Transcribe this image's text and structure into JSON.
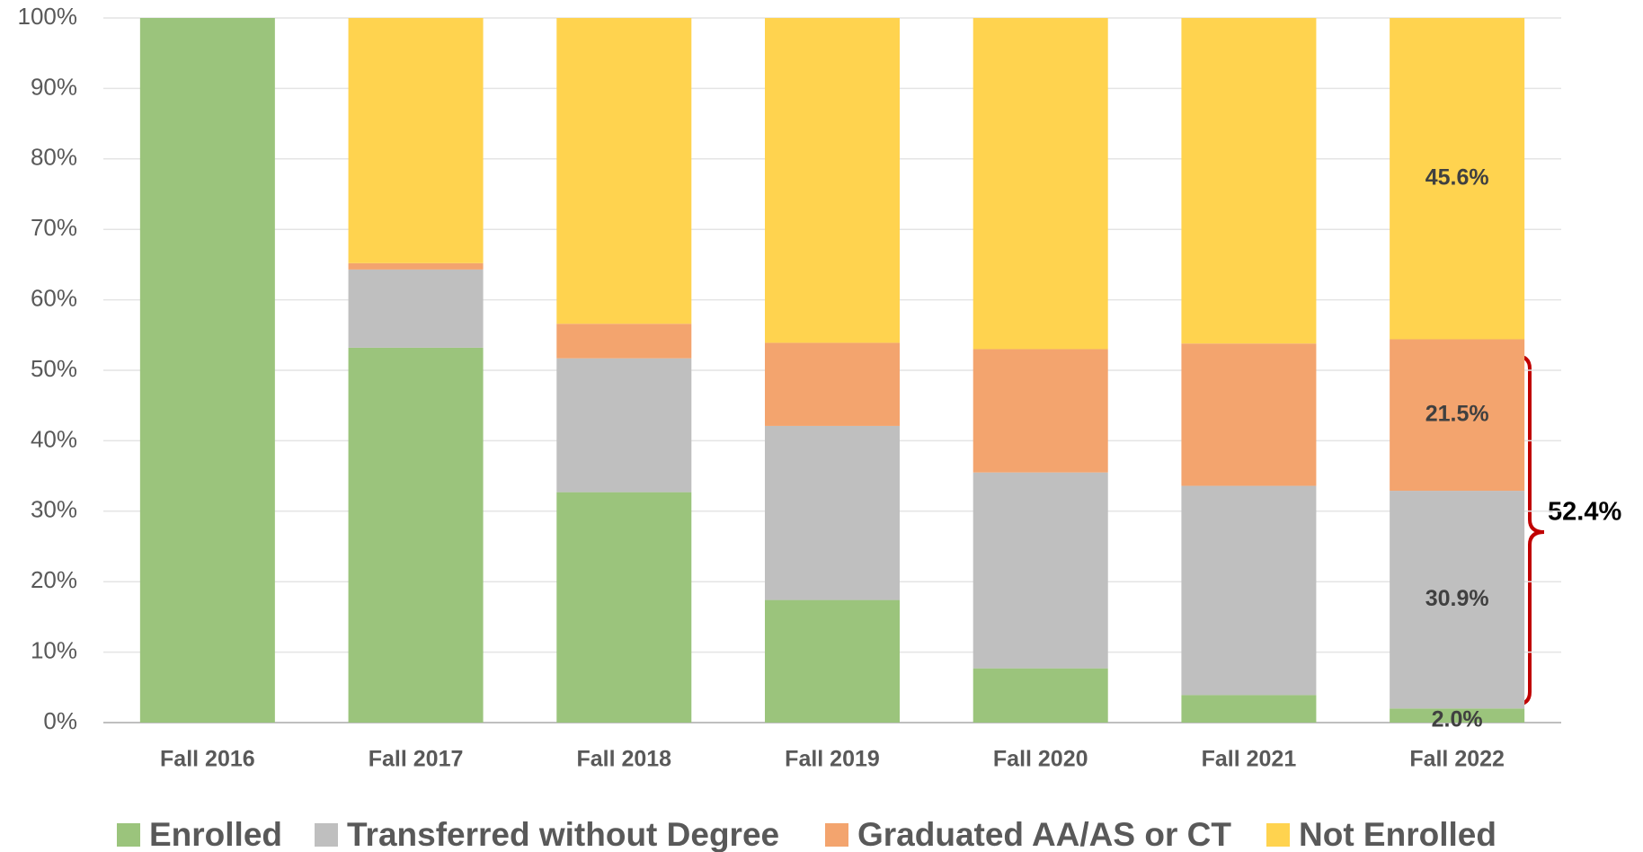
{
  "chart_data": {
    "type": "stacked_bar",
    "categories": [
      "Fall 2016",
      "Fall 2017",
      "Fall 2018",
      "Fall 2019",
      "Fall 2020",
      "Fall 2021",
      "Fall 2022"
    ],
    "series": [
      {
        "name": "Enrolled",
        "color": "#9bc47c",
        "values": [
          100,
          53.2,
          32.7,
          17.4,
          7.7,
          3.9,
          2.0
        ],
        "value_labels": [
          null,
          null,
          null,
          null,
          null,
          null,
          "2.0%"
        ]
      },
      {
        "name": "Transferred without Degree",
        "color": "#bfbfbf",
        "values": [
          0,
          11.1,
          19.0,
          24.7,
          27.8,
          29.7,
          30.9
        ],
        "value_labels": [
          null,
          null,
          null,
          null,
          null,
          null,
          "30.9%"
        ]
      },
      {
        "name": "Graduated AA/AS or CT",
        "color": "#f3a46e",
        "values": [
          0,
          0.9,
          4.9,
          11.8,
          17.5,
          20.2,
          21.5
        ],
        "value_labels": [
          null,
          null,
          null,
          null,
          null,
          null,
          "21.5%"
        ]
      },
      {
        "name": "Not Enrolled",
        "color": "#ffd34f",
        "values": [
          0,
          34.8,
          43.4,
          46.1,
          47.0,
          46.2,
          45.6
        ],
        "value_labels": [
          null,
          null,
          null,
          null,
          null,
          null,
          "45.6%"
        ]
      }
    ],
    "ylim": [
      0,
      100
    ],
    "yticks": [
      {
        "value": 0,
        "label": "0%"
      },
      {
        "value": 10,
        "label": "10%"
      },
      {
        "value": 20,
        "label": "20%"
      },
      {
        "value": 30,
        "label": "30%"
      },
      {
        "value": 40,
        "label": "40%"
      },
      {
        "value": 50,
        "label": "50%"
      },
      {
        "value": 60,
        "label": "60%"
      },
      {
        "value": 70,
        "label": "70%"
      },
      {
        "value": 80,
        "label": "80%"
      },
      {
        "value": 90,
        "label": "90%"
      },
      {
        "value": 100,
        "label": "100%"
      }
    ],
    "grid": true,
    "legend": "bottom",
    "annotation": "52.4%"
  }
}
